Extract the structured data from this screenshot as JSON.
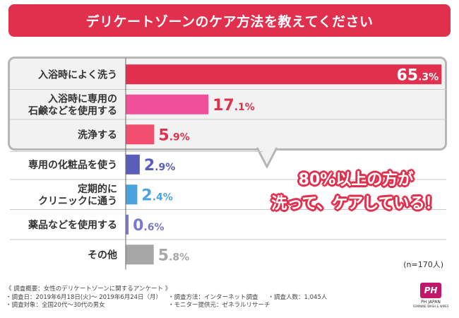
{
  "title": "デリケートゾーンのケア方法を教えてください",
  "chart_data": {
    "type": "bar",
    "orientation": "horizontal",
    "title": "デリケートゾーンのケア方法を教えてください",
    "categories": [
      [
        "入浴時によく洗う"
      ],
      [
        "入浴時に専用の",
        "石鹸などを使用する"
      ],
      [
        "洗浄する"
      ],
      [
        "専用の化粧品を使う"
      ],
      [
        "定期的に",
        "クリニックに通う"
      ],
      [
        "薬品などを使用する"
      ],
      [
        "その他"
      ]
    ],
    "values": [
      65.3,
      17.1,
      5.9,
      2.9,
      2.4,
      0.6,
      5.8
    ],
    "value_labels": [
      {
        "int": "65",
        "dec": ".3%"
      },
      {
        "int": "17",
        "dec": ".1%"
      },
      {
        "int": "5",
        "dec": ".9%"
      },
      {
        "int": "2",
        "dec": ".9%"
      },
      {
        "int": "2",
        "dec": ".4%"
      },
      {
        "int": "0",
        "dec": ".6%"
      },
      {
        "int": "5",
        "dec": ".8%"
      }
    ],
    "colors": [
      "#e0304e",
      "#f0509a",
      "#f24f70",
      "#5a5eba",
      "#4aa3dc",
      "#7b79c9",
      "#a7a7a7"
    ],
    "label_colors": [
      "#ffffff",
      "#e0304e",
      "#e0304e",
      "#5a5eba",
      "#4aa3dc",
      "#7b79c9",
      "#a7a7a7"
    ],
    "xlim": [
      0,
      66
    ],
    "grid": false,
    "legend": "none"
  },
  "callout": {
    "line1": "80%以上の方が",
    "line2": "洗って、ケアしている！"
  },
  "sample_note": "(n=170人)",
  "survey": {
    "title": "《 調査概要：女性のデリケートゾーンに関するアンケート 》",
    "period": "・調査日：2019年6月18日(火)～ 2019年6月24日（月）",
    "method": "・調査方法：インターネット調査",
    "count": "・調査人数：1,045人",
    "target": "・調査対象：全国20代～30代の男女",
    "provider": "・モニター提供元：ゼネラルリサーチ"
  },
  "logo": {
    "badge": "PH",
    "brand": "PH JAPAN",
    "sub": "FEMININE WASH & WIPES"
  }
}
